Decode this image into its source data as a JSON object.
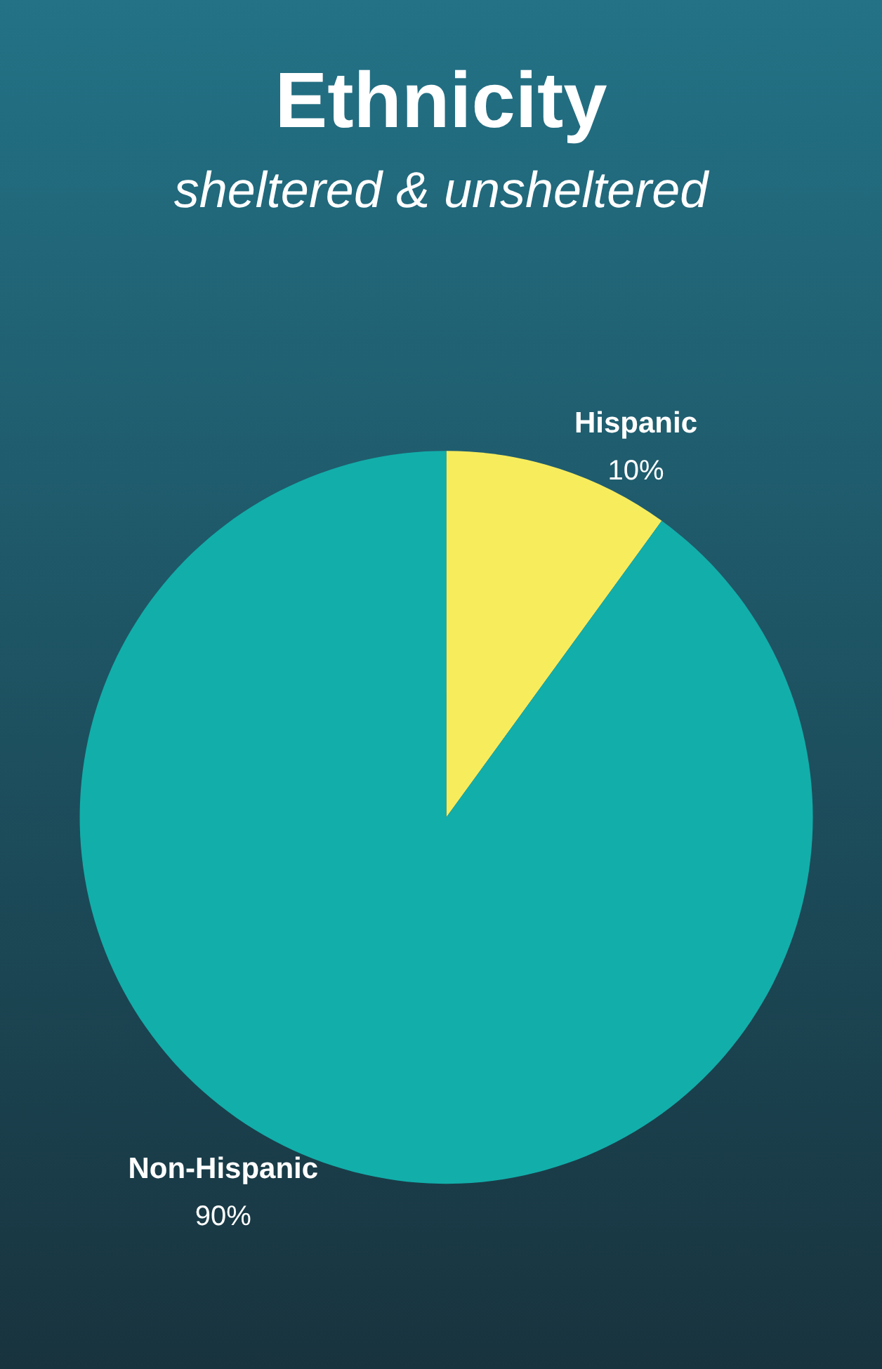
{
  "chart_data": {
    "type": "pie",
    "title": "Ethnicity",
    "subtitle": "sheltered & unsheltered",
    "categories": [
      "Hispanic",
      "Non-Hispanic"
    ],
    "values": [
      10,
      90
    ],
    "colors": [
      "#f7ec5c",
      "#12aeaa"
    ],
    "value_labels": [
      "10%",
      "90%"
    ]
  }
}
